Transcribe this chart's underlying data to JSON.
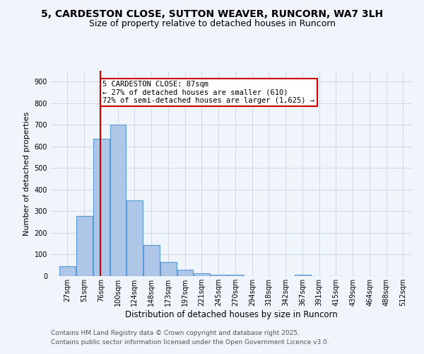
{
  "title1": "5, CARDESTON CLOSE, SUTTON WEAVER, RUNCORN, WA7 3LH",
  "title2": "Size of property relative to detached houses in Runcorn",
  "xlabel": "Distribution of detached houses by size in Runcorn",
  "ylabel": "Number of detached properties",
  "categories": [
    "27sqm",
    "51sqm",
    "76sqm",
    "100sqm",
    "124sqm",
    "148sqm",
    "173sqm",
    "197sqm",
    "221sqm",
    "245sqm",
    "270sqm",
    "294sqm",
    "318sqm",
    "342sqm",
    "367sqm",
    "391sqm",
    "415sqm",
    "439sqm",
    "464sqm",
    "488sqm",
    "512sqm"
  ],
  "bar_left_edges": [
    27,
    51,
    76,
    100,
    124,
    148,
    173,
    197,
    221,
    245,
    270,
    294,
    318,
    342,
    367,
    391,
    415,
    439,
    464,
    488,
    512
  ],
  "bar_widths": [
    24,
    25,
    24,
    24,
    24,
    25,
    24,
    24,
    24,
    25,
    24,
    24,
    24,
    25,
    24,
    24,
    24,
    25,
    24,
    24,
    24
  ],
  "values": [
    45,
    280,
    635,
    700,
    350,
    145,
    65,
    30,
    13,
    8,
    8,
    0,
    0,
    0,
    8,
    0,
    0,
    0,
    0,
    0,
    0
  ],
  "bar_color": "#aec6e8",
  "bar_edge_color": "#5b9bd5",
  "grid_color": "#d0d8e8",
  "background_color": "#f0f4fb",
  "red_line_x": 87,
  "annotation_text": "5 CARDESTON CLOSE: 87sqm\n← 27% of detached houses are smaller (610)\n72% of semi-detached houses are larger (1,625) →",
  "annotation_box_color": "#ffffff",
  "annotation_box_edge_color": "#cc0000",
  "ylim": [
    0,
    950
  ],
  "yticks": [
    0,
    100,
    200,
    300,
    400,
    500,
    600,
    700,
    800,
    900
  ],
  "footnote1": "Contains HM Land Registry data © Crown copyright and database right 2025.",
  "footnote2": "Contains public sector information licensed under the Open Government Licence v3.0.",
  "title1_fontsize": 10,
  "title2_fontsize": 9,
  "xlabel_fontsize": 8.5,
  "ylabel_fontsize": 8,
  "tick_fontsize": 7,
  "annotation_fontsize": 7.5,
  "footnote_fontsize": 6.5
}
